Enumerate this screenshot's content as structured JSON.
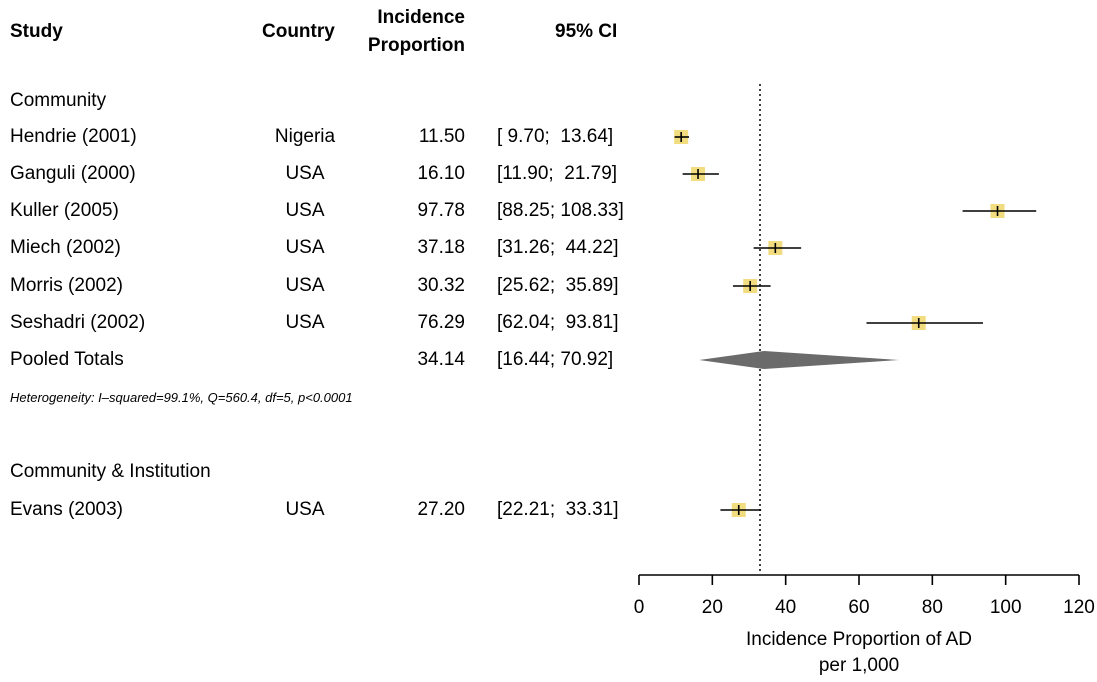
{
  "headers": {
    "study": "Study",
    "country": "Country",
    "incidence_line1": "Incidence",
    "incidence_line2": "Proportion",
    "ci": "95% CI"
  },
  "groups": [
    {
      "label": "Community",
      "rows": [
        {
          "study": "Hendrie (2001)",
          "country": "Nigeria",
          "value": "11.50",
          "ci": "[ 9.70;  13.64]"
        },
        {
          "study": "Ganguli (2000)",
          "country": "USA",
          "value": "16.10",
          "ci": "[11.90;  21.79]"
        },
        {
          "study": "Kuller (2005)",
          "country": "USA",
          "value": "97.78",
          "ci": "[88.25; 108.33]"
        },
        {
          "study": "Miech (2002)",
          "country": "USA",
          "value": "37.18",
          "ci": "[31.26;  44.22]"
        },
        {
          "study": "Morris (2002)",
          "country": "USA",
          "value": "30.32",
          "ci": "[25.62;  35.89]"
        },
        {
          "study": "Seshadri (2002)",
          "country": "USA",
          "value": "76.29",
          "ci": "[62.04;  93.81]"
        }
      ],
      "pooled": {
        "label": "Pooled Totals",
        "value": "34.14",
        "ci": "[16.44; 70.92]"
      },
      "heterogeneity": "Heterogeneity: I–squared=99.1%, Q=560.4, df=5, p<0.0001"
    },
    {
      "label": "Community & Institution",
      "rows": [
        {
          "study": "Evans (2003)",
          "country": "USA",
          "value": "27.20",
          "ci": "[22.21;  33.31]"
        }
      ]
    }
  ],
  "colors": {
    "square": "#f2dc80",
    "diamond": "#6b6b6b",
    "line": "#000000"
  },
  "chart_data": {
    "type": "forest",
    "xlabel_line1": "Incidence Proportion of AD",
    "xlabel_line2": "per 1,000",
    "xlim": [
      0,
      120
    ],
    "xticks": [
      0,
      20,
      40,
      60,
      80,
      100,
      120
    ],
    "reference_line": 33,
    "studies": [
      {
        "name": "Hendrie (2001)",
        "est": 11.5,
        "lo": 9.7,
        "hi": 13.64
      },
      {
        "name": "Ganguli (2000)",
        "est": 16.1,
        "lo": 11.9,
        "hi": 21.79
      },
      {
        "name": "Kuller (2005)",
        "est": 97.78,
        "lo": 88.25,
        "hi": 108.33
      },
      {
        "name": "Miech (2002)",
        "est": 37.18,
        "lo": 31.26,
        "hi": 44.22
      },
      {
        "name": "Morris (2002)",
        "est": 30.32,
        "lo": 25.62,
        "hi": 35.89
      },
      {
        "name": "Seshadri (2002)",
        "est": 76.29,
        "lo": 62.04,
        "hi": 93.81
      },
      {
        "name": "Evans (2003)",
        "est": 27.2,
        "lo": 22.21,
        "hi": 33.31
      }
    ],
    "pooled": {
      "name": "Pooled Totals",
      "est": 34.14,
      "lo": 16.44,
      "hi": 70.92
    }
  }
}
